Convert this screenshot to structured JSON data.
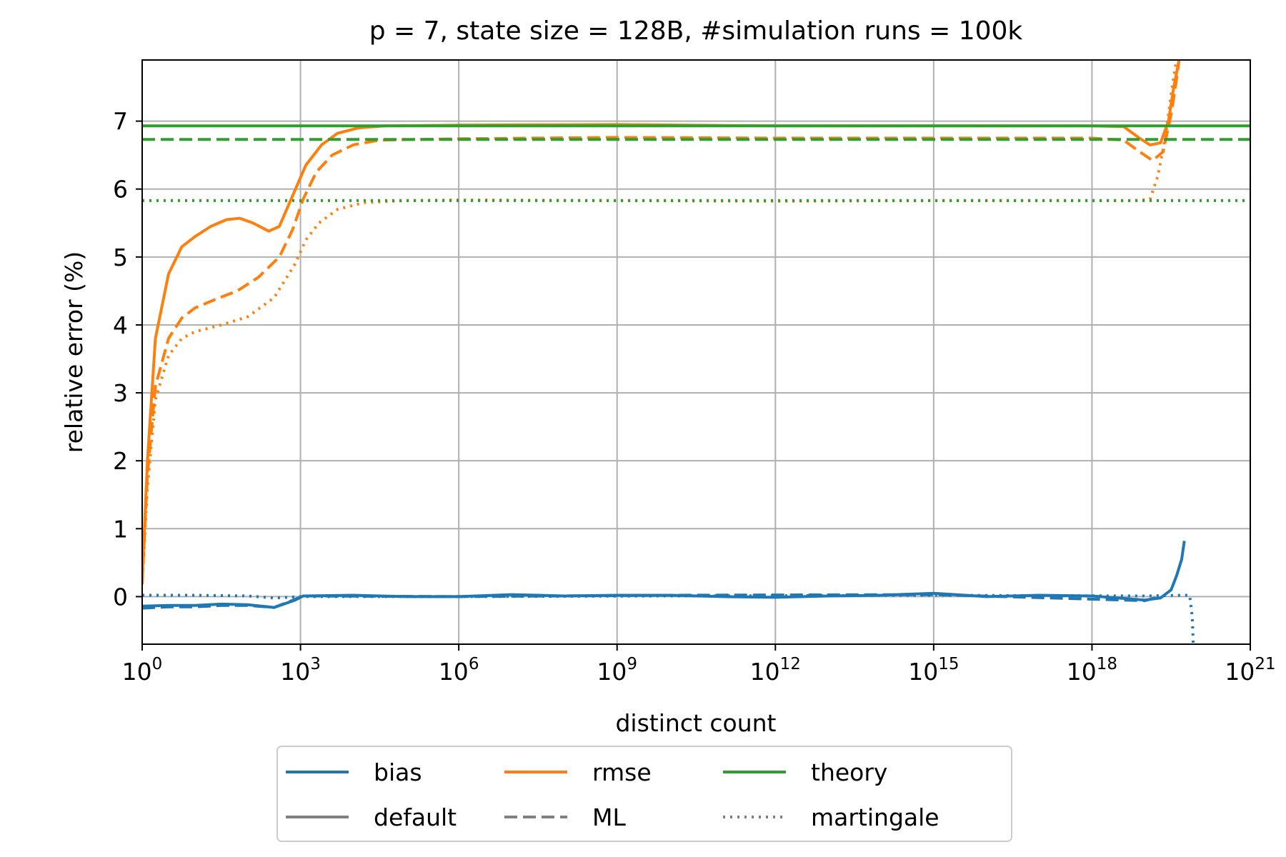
{
  "chart_data": {
    "type": "line",
    "title": "p = 7, state size = 128B, #simulation runs = 100k",
    "xlabel": "distinct count",
    "ylabel": "relative error (%)",
    "x_scale": "log",
    "xlim": [
      1,
      1e+21
    ],
    "ylim": [
      -0.7,
      7.9
    ],
    "x_ticks": [
      {
        "exp": 0,
        "base": "10",
        "sup": "0"
      },
      {
        "exp": 3,
        "base": "10",
        "sup": "3"
      },
      {
        "exp": 6,
        "base": "10",
        "sup": "6"
      },
      {
        "exp": 9,
        "base": "10",
        "sup": "9"
      },
      {
        "exp": 12,
        "base": "10",
        "sup": "12"
      },
      {
        "exp": 15,
        "base": "10",
        "sup": "15"
      },
      {
        "exp": 18,
        "base": "10",
        "sup": "18"
      },
      {
        "exp": 21,
        "base": "10",
        "sup": "21"
      }
    ],
    "y_ticks": [
      {
        "v": 0,
        "label": "0"
      },
      {
        "v": 1,
        "label": "1"
      },
      {
        "v": 2,
        "label": "2"
      },
      {
        "v": 3,
        "label": "3"
      },
      {
        "v": 4,
        "label": "4"
      },
      {
        "v": 5,
        "label": "5"
      },
      {
        "v": 6,
        "label": "6"
      },
      {
        "v": 7,
        "label": "7"
      }
    ],
    "grid": true,
    "colors": {
      "bias": "#1f77b4",
      "rmse": "#ff7f0e",
      "theory": "#2ca02c",
      "legend_gray": "#808080"
    },
    "series": [
      {
        "metric": "bias",
        "estimator": "default",
        "style": "solid",
        "points": [
          [
            0,
            -0.14
          ],
          [
            0.5,
            -0.13
          ],
          [
            1,
            -0.13
          ],
          [
            1.5,
            -0.11
          ],
          [
            2,
            -0.12
          ],
          [
            2.5,
            -0.16
          ],
          [
            2.9,
            -0.05
          ],
          [
            3.05,
            0.01
          ],
          [
            4,
            0.02
          ],
          [
            5,
            0.0
          ],
          [
            6,
            0.0
          ],
          [
            7,
            0.03
          ],
          [
            8,
            0.01
          ],
          [
            9,
            0.02
          ],
          [
            10,
            0.02
          ],
          [
            11,
            0.0
          ],
          [
            12,
            -0.01
          ],
          [
            13,
            0.01
          ],
          [
            14,
            0.02
          ],
          [
            15,
            0.05
          ],
          [
            16,
            0.0
          ],
          [
            17,
            0.02
          ],
          [
            18,
            0.01
          ],
          [
            19,
            -0.05
          ],
          [
            19.3,
            -0.02
          ],
          [
            19.5,
            0.1
          ],
          [
            19.6,
            0.3
          ],
          [
            19.7,
            0.55
          ],
          [
            19.75,
            0.82
          ]
        ]
      },
      {
        "metric": "bias",
        "estimator": "ML",
        "style": "dashed",
        "points": [
          [
            0,
            -0.17
          ],
          [
            0.5,
            -0.15
          ],
          [
            1,
            -0.15
          ],
          [
            1.5,
            -0.13
          ],
          [
            2,
            -0.13
          ],
          [
            2.5,
            -0.16
          ],
          [
            2.9,
            -0.04
          ],
          [
            3.05,
            0.01
          ],
          [
            6,
            0.0
          ],
          [
            10,
            0.02
          ],
          [
            15,
            0.03
          ],
          [
            19,
            -0.06
          ],
          [
            19.3,
            0.0
          ]
        ]
      },
      {
        "metric": "bias",
        "estimator": "martingale",
        "style": "dotted",
        "points": [
          [
            0,
            0.02
          ],
          [
            1,
            0.02
          ],
          [
            2,
            0.01
          ],
          [
            2.5,
            -0.02
          ],
          [
            3,
            0.0
          ],
          [
            6,
            0.0
          ],
          [
            10,
            0.01
          ],
          [
            15,
            0.02
          ],
          [
            19,
            0.01
          ],
          [
            19.7,
            0.02
          ],
          [
            19.85,
            0.02
          ],
          [
            19.9,
            -0.3
          ],
          [
            19.92,
            -0.7
          ]
        ]
      },
      {
        "metric": "rmse",
        "estimator": "default",
        "style": "solid",
        "points": [
          [
            0,
            0.25
          ],
          [
            0.1,
            2.0
          ],
          [
            0.25,
            3.8
          ],
          [
            0.5,
            4.75
          ],
          [
            0.75,
            5.15
          ],
          [
            1,
            5.3
          ],
          [
            1.3,
            5.45
          ],
          [
            1.6,
            5.55
          ],
          [
            1.85,
            5.57
          ],
          [
            2.1,
            5.5
          ],
          [
            2.4,
            5.38
          ],
          [
            2.6,
            5.45
          ],
          [
            2.85,
            5.9
          ],
          [
            3.1,
            6.35
          ],
          [
            3.4,
            6.65
          ],
          [
            3.7,
            6.82
          ],
          [
            4.1,
            6.9
          ],
          [
            4.6,
            6.93
          ],
          [
            6,
            6.94
          ],
          [
            9,
            6.95
          ],
          [
            12,
            6.93
          ],
          [
            15,
            6.93
          ],
          [
            18,
            6.93
          ],
          [
            18.6,
            6.92
          ],
          [
            18.9,
            6.75
          ],
          [
            19.1,
            6.65
          ],
          [
            19.3,
            6.68
          ],
          [
            19.45,
            7.0
          ],
          [
            19.55,
            7.5
          ],
          [
            19.65,
            7.9
          ]
        ]
      },
      {
        "metric": "rmse",
        "estimator": "ML",
        "style": "dashed",
        "points": [
          [
            0,
            0.2
          ],
          [
            0.1,
            1.8
          ],
          [
            0.25,
            3.1
          ],
          [
            0.5,
            3.8
          ],
          [
            0.75,
            4.1
          ],
          [
            1,
            4.25
          ],
          [
            1.4,
            4.38
          ],
          [
            1.8,
            4.5
          ],
          [
            2.2,
            4.7
          ],
          [
            2.6,
            5.0
          ],
          [
            2.85,
            5.4
          ],
          [
            3.05,
            5.85
          ],
          [
            3.3,
            6.25
          ],
          [
            3.6,
            6.5
          ],
          [
            4,
            6.65
          ],
          [
            4.5,
            6.72
          ],
          [
            6,
            6.74
          ],
          [
            9,
            6.76
          ],
          [
            12,
            6.75
          ],
          [
            15,
            6.75
          ],
          [
            18,
            6.75
          ],
          [
            18.6,
            6.72
          ],
          [
            18.9,
            6.55
          ],
          [
            19.15,
            6.42
          ],
          [
            19.35,
            6.55
          ],
          [
            19.5,
            7.1
          ],
          [
            19.6,
            7.6
          ],
          [
            19.65,
            7.9
          ]
        ]
      },
      {
        "metric": "rmse",
        "estimator": "martingale",
        "style": "dotted",
        "points": [
          [
            0,
            0.18
          ],
          [
            0.1,
            1.6
          ],
          [
            0.25,
            2.9
          ],
          [
            0.5,
            3.55
          ],
          [
            0.75,
            3.8
          ],
          [
            1,
            3.9
          ],
          [
            1.5,
            4.0
          ],
          [
            2,
            4.12
          ],
          [
            2.5,
            4.4
          ],
          [
            2.9,
            4.9
          ],
          [
            3.1,
            5.25
          ],
          [
            3.35,
            5.5
          ],
          [
            3.7,
            5.7
          ],
          [
            4.2,
            5.8
          ],
          [
            5,
            5.83
          ],
          [
            6,
            5.84
          ],
          [
            9,
            5.83
          ],
          [
            12,
            5.82
          ],
          [
            15,
            5.83
          ],
          [
            18,
            5.83
          ],
          [
            18.8,
            5.83
          ],
          [
            19.1,
            5.85
          ],
          [
            19.25,
            6.2
          ],
          [
            19.4,
            6.8
          ],
          [
            19.5,
            7.4
          ],
          [
            19.6,
            7.9
          ]
        ]
      },
      {
        "metric": "theory",
        "estimator": "default",
        "style": "solid",
        "points": [
          [
            0,
            6.93
          ],
          [
            21,
            6.93
          ]
        ]
      },
      {
        "metric": "theory",
        "estimator": "ML",
        "style": "dashed",
        "points": [
          [
            0,
            6.73
          ],
          [
            21,
            6.73
          ]
        ]
      },
      {
        "metric": "theory",
        "estimator": "martingale",
        "style": "dotted",
        "points": [
          [
            0,
            5.83
          ],
          [
            21,
            5.83
          ]
        ]
      }
    ],
    "legend": {
      "placement": "below-center",
      "entries": [
        {
          "label": "bias",
          "kind": "color",
          "color_key": "bias"
        },
        {
          "label": "rmse",
          "kind": "color",
          "color_key": "rmse"
        },
        {
          "label": "theory",
          "kind": "color",
          "color_key": "theory"
        },
        {
          "label": "default",
          "kind": "style",
          "style": "solid"
        },
        {
          "label": "ML",
          "kind": "style",
          "style": "dashed"
        },
        {
          "label": "martingale",
          "kind": "style",
          "style": "dotted"
        }
      ]
    }
  }
}
